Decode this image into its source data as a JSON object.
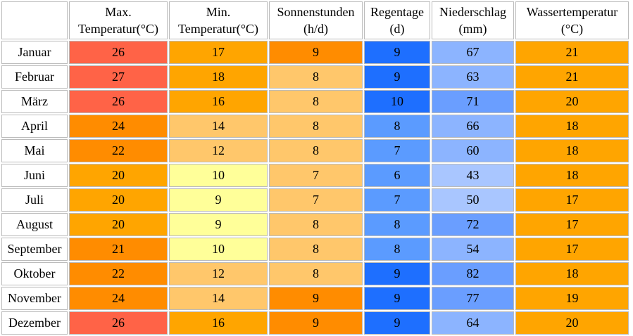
{
  "columns": [
    {
      "line1": "",
      "line2": ""
    },
    {
      "line1": "Max.",
      "line2": "Temperatur(°C)"
    },
    {
      "line1": "Min.",
      "line2": "Temperatur(°C)"
    },
    {
      "line1": "Sonnenstunden",
      "line2": "(h/d)"
    },
    {
      "line1": "Regentage",
      "line2": "(d)"
    },
    {
      "line1": "Niederschlag",
      "line2": "(mm)"
    },
    {
      "line1": "Wassertemperatur",
      "line2": "(°C)"
    }
  ],
  "rows": [
    {
      "month": "Januar",
      "values": [
        "26",
        "17",
        "9",
        "9",
        "67",
        "21"
      ],
      "colors": [
        "#ff6347",
        "#ffa500",
        "#ff8c00",
        "#1e6fff",
        "#8cb4ff",
        "#ffa500"
      ]
    },
    {
      "month": "Februar",
      "values": [
        "27",
        "18",
        "8",
        "9",
        "63",
        "21"
      ],
      "colors": [
        "#ff6347",
        "#ffa500",
        "#ffc76b",
        "#1e6fff",
        "#8cb4ff",
        "#ffa500"
      ]
    },
    {
      "month": "März",
      "values": [
        "26",
        "16",
        "8",
        "10",
        "71",
        "20"
      ],
      "colors": [
        "#ff6347",
        "#ffa500",
        "#ffc76b",
        "#1e6fff",
        "#6a9eff",
        "#ffa500"
      ]
    },
    {
      "month": "April",
      "values": [
        "24",
        "14",
        "8",
        "8",
        "66",
        "18"
      ],
      "colors": [
        "#ff8c00",
        "#ffc76b",
        "#ffc76b",
        "#5b9bff",
        "#8cb4ff",
        "#ffa500"
      ]
    },
    {
      "month": "Mai",
      "values": [
        "22",
        "12",
        "8",
        "7",
        "60",
        "18"
      ],
      "colors": [
        "#ff8c00",
        "#ffc76b",
        "#ffc76b",
        "#5b9bff",
        "#8cb4ff",
        "#ffa500"
      ]
    },
    {
      "month": "Juni",
      "values": [
        "20",
        "10",
        "7",
        "6",
        "43",
        "18"
      ],
      "colors": [
        "#ffa500",
        "#ffff99",
        "#ffc76b",
        "#5b9bff",
        "#a9c6ff",
        "#ffa500"
      ]
    },
    {
      "month": "Juli",
      "values": [
        "20",
        "9",
        "7",
        "7",
        "50",
        "17"
      ],
      "colors": [
        "#ffa500",
        "#ffff99",
        "#ffc76b",
        "#5b9bff",
        "#a9c6ff",
        "#ffa500"
      ]
    },
    {
      "month": "August",
      "values": [
        "20",
        "9",
        "8",
        "8",
        "72",
        "17"
      ],
      "colors": [
        "#ffa500",
        "#ffff99",
        "#ffc76b",
        "#5b9bff",
        "#6a9eff",
        "#ffa500"
      ]
    },
    {
      "month": "September",
      "values": [
        "21",
        "10",
        "8",
        "8",
        "54",
        "17"
      ],
      "colors": [
        "#ff8c00",
        "#ffff99",
        "#ffc76b",
        "#5b9bff",
        "#8cb4ff",
        "#ffa500"
      ]
    },
    {
      "month": "Oktober",
      "values": [
        "22",
        "12",
        "8",
        "9",
        "82",
        "18"
      ],
      "colors": [
        "#ff8c00",
        "#ffc76b",
        "#ffc76b",
        "#1e6fff",
        "#6a9eff",
        "#ffa500"
      ]
    },
    {
      "month": "November",
      "values": [
        "24",
        "14",
        "9",
        "9",
        "77",
        "19"
      ],
      "colors": [
        "#ff8c00",
        "#ffc76b",
        "#ff8c00",
        "#1e6fff",
        "#6a9eff",
        "#ffa500"
      ]
    },
    {
      "month": "Dezember",
      "values": [
        "26",
        "16",
        "9",
        "9",
        "64",
        "20"
      ],
      "colors": [
        "#ff6347",
        "#ffa500",
        "#ff8c00",
        "#1e6fff",
        "#8cb4ff",
        "#ffa500"
      ]
    }
  ]
}
